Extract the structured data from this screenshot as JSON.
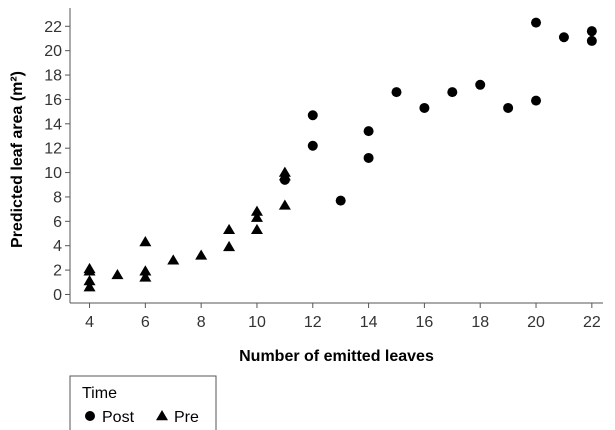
{
  "chart_data": {
    "type": "scatter",
    "title": "",
    "xlabel": "Number of emitted leaves",
    "ylabel": "Predicted leaf area (m²)",
    "xlim": [
      3.3,
      22.4
    ],
    "ylim": [
      -0.7,
      23.5
    ],
    "xticks": [
      4,
      6,
      8,
      10,
      12,
      14,
      16,
      18,
      20,
      22
    ],
    "yticks": [
      0,
      2,
      4,
      6,
      8,
      10,
      12,
      14,
      16,
      18,
      20,
      22
    ],
    "grid": false,
    "legend": {
      "title": "Time",
      "placement": "bottom-left"
    },
    "series": [
      {
        "name": "Post",
        "marker": "circle",
        "color": "#000000",
        "points": [
          [
            11,
            9.4
          ],
          [
            12,
            14.7
          ],
          [
            12,
            12.2
          ],
          [
            13,
            7.7
          ],
          [
            14,
            13.4
          ],
          [
            14,
            11.2
          ],
          [
            15,
            16.6
          ],
          [
            16,
            15.3
          ],
          [
            17,
            16.6
          ],
          [
            18,
            17.2
          ],
          [
            19,
            15.3
          ],
          [
            20,
            22.3
          ],
          [
            20,
            15.9
          ],
          [
            21,
            21.1
          ],
          [
            22,
            21.6
          ],
          [
            22,
            20.8
          ]
        ]
      },
      {
        "name": "Pre",
        "marker": "triangle",
        "color": "#000000",
        "points": [
          [
            4,
            2.1
          ],
          [
            4,
            1.9
          ],
          [
            4,
            1.1
          ],
          [
            4,
            0.6
          ],
          [
            5,
            1.6
          ],
          [
            6,
            4.3
          ],
          [
            6,
            1.9
          ],
          [
            6,
            1.4
          ],
          [
            7,
            2.8
          ],
          [
            8,
            3.2
          ],
          [
            9,
            5.3
          ],
          [
            9,
            3.9
          ],
          [
            10,
            6.8
          ],
          [
            10,
            6.3
          ],
          [
            10,
            5.3
          ],
          [
            11,
            10.0
          ],
          [
            11,
            9.7
          ],
          [
            11,
            7.3
          ]
        ]
      }
    ]
  }
}
